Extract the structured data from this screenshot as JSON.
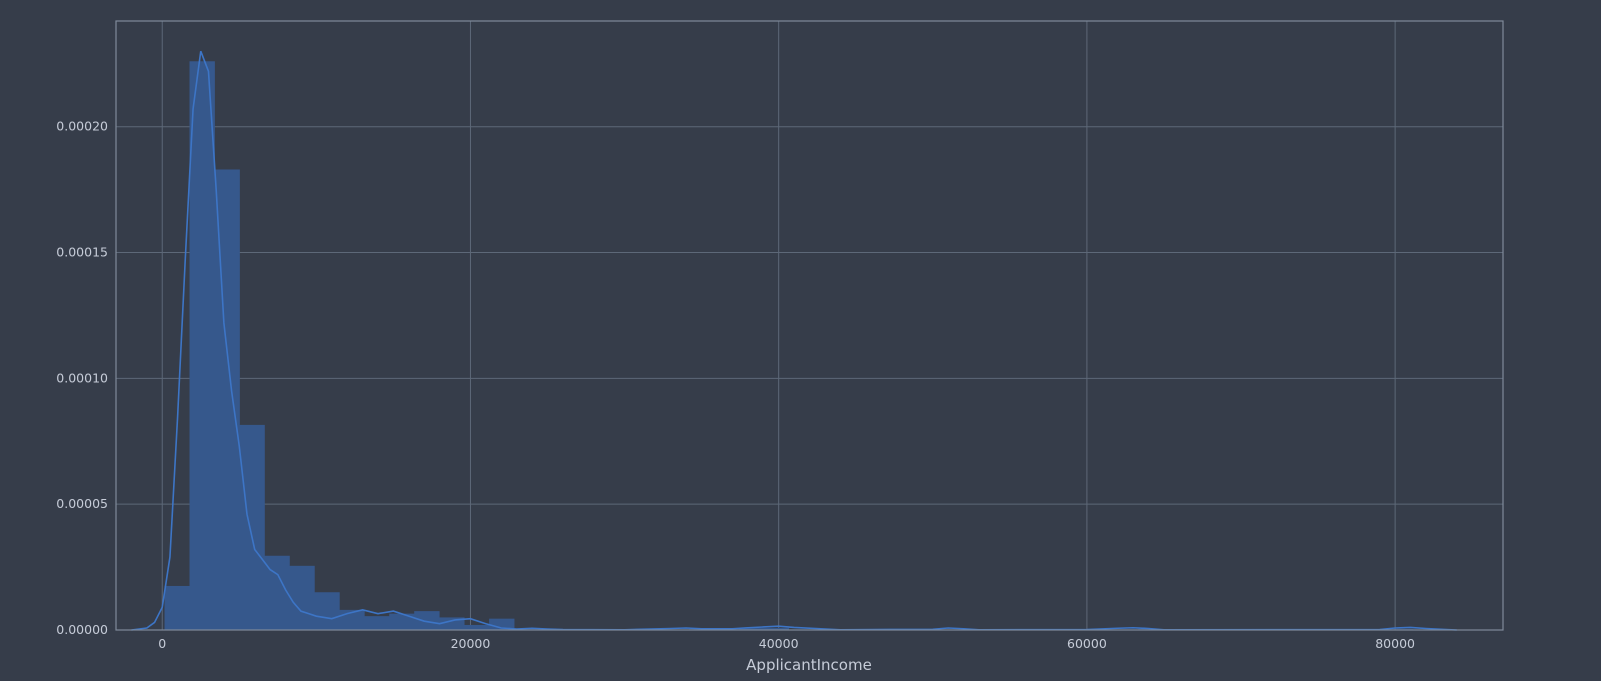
{
  "chart_data": {
    "type": "bar",
    "xlabel": "ApplicantIncome",
    "ylabel": "",
    "xlim": [
      -3000,
      87000
    ],
    "ylim": [
      0,
      0.000242
    ],
    "x_ticks": [
      {
        "value": 0,
        "label": "0"
      },
      {
        "value": 20000,
        "label": "20000"
      },
      {
        "value": 40000,
        "label": "40000"
      },
      {
        "value": 60000,
        "label": "60000"
      },
      {
        "value": 80000,
        "label": "80000"
      }
    ],
    "y_ticks": [
      {
        "value": 0,
        "label": "0.00000"
      },
      {
        "value": 5e-05,
        "label": "0.00005"
      },
      {
        "value": 0.0001,
        "label": "0.00010"
      },
      {
        "value": 0.00015,
        "label": "0.00015"
      },
      {
        "value": 0.0002,
        "label": "0.00020"
      }
    ],
    "grid": true,
    "histogram": {
      "bin_width": 1620,
      "bins_start": 150,
      "densities": [
        1.75e-05,
        0.000226,
        0.000183,
        8.15e-05,
        2.95e-05,
        2.55e-05,
        1.5e-05,
        8e-06,
        5.5e-06,
        6.5e-06,
        7.5e-06,
        5e-06,
        2e-06,
        4.5e-06,
        3e-07,
        3e-07,
        3e-07,
        0,
        0,
        0,
        0,
        3e-07,
        3e-07,
        8e-07,
        8e-07,
        0,
        0,
        0,
        0,
        0,
        0,
        0,
        3e-07,
        0,
        0,
        0,
        0,
        0,
        0,
        3e-07,
        0,
        0,
        0,
        0,
        0,
        0,
        0,
        0,
        0,
        3e-07
      ]
    },
    "kde": {
      "x": [
        -2000,
        -1000,
        -500,
        0,
        500,
        1000,
        1500,
        2000,
        2500,
        3000,
        3500,
        4000,
        4500,
        5000,
        5500,
        6000,
        6500,
        7000,
        7500,
        8000,
        8500,
        9000,
        9500,
        10000,
        11000,
        12000,
        13000,
        14000,
        15000,
        16000,
        17000,
        18000,
        19000,
        20000,
        21000,
        22000,
        23000,
        24000,
        25000,
        26000,
        30000,
        33000,
        34000,
        35000,
        37000,
        38000,
        39000,
        40000,
        41000,
        44000,
        50000,
        51000,
        52000,
        53000,
        60000,
        62000,
        63000,
        64000,
        65000,
        79000,
        80000,
        81000,
        82000,
        84000
      ],
      "y": [
        0,
        8e-07,
        3e-06,
        9e-06,
        2.9e-05,
        8.5e-05,
        0.000148,
        0.000207,
        0.00023,
        0.000222,
        0.000175,
        0.000122,
        9.5e-05,
        7.3e-05,
        4.6e-05,
        3.2e-05,
        2.8e-05,
        2.4e-05,
        2.2e-05,
        1.6e-05,
        1.1e-05,
        7.5e-06,
        6.5e-06,
        5.5e-06,
        4.5e-06,
        6.5e-06,
        8e-06,
        6.5e-06,
        7.5e-06,
        5.5e-06,
        3.5e-06,
        2.5e-06,
        4e-06,
        4.5e-06,
        2.5e-06,
        8e-07,
        4e-07,
        7e-07,
        4e-07,
        2e-07,
        1e-07,
        6e-07,
        8e-07,
        5e-07,
        5e-07,
        9e-07,
        1.2e-06,
        1.5e-06,
        1e-06,
        1e-07,
        3e-07,
        8e-07,
        5e-07,
        1e-07,
        2e-07,
        7e-07,
        9e-07,
        6e-07,
        1e-07,
        2e-07,
        8e-07,
        1e-06,
        6e-07,
        0
      ]
    }
  }
}
